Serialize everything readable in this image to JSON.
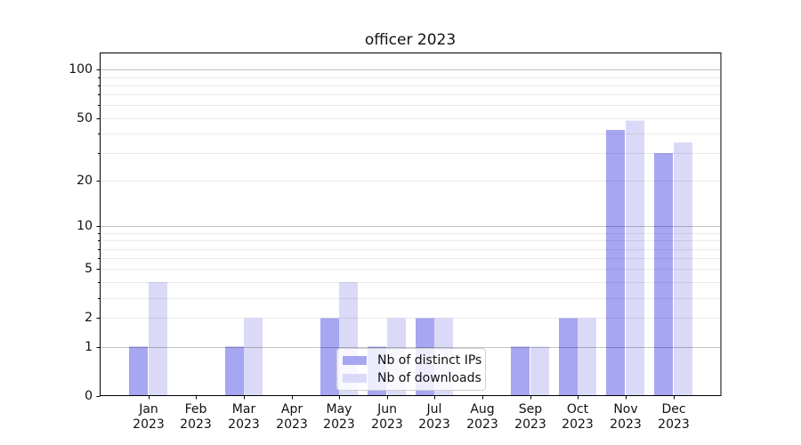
{
  "chart_data": {
    "type": "bar",
    "title": "officer 2023",
    "months": [
      "Jan",
      "Feb",
      "Mar",
      "Apr",
      "May",
      "Jun",
      "Jul",
      "Aug",
      "Sep",
      "Oct",
      "Nov",
      "Dec"
    ],
    "x_tick_year": "2023",
    "series": [
      {
        "name": "Nb of distinct IPs",
        "color": "#a6a6f2",
        "values": [
          1,
          0,
          1,
          0,
          2,
          1,
          2,
          0,
          1,
          2,
          42,
          30
        ]
      },
      {
        "name": "Nb of downloads",
        "color": "#dadaf8",
        "values": [
          4,
          0,
          2,
          0,
          4,
          2,
          2,
          0,
          1,
          2,
          48,
          35
        ]
      }
    ],
    "yscale": "log1p",
    "ylim": [
      0,
      127
    ],
    "yticks": [
      0,
      1,
      2,
      5,
      10,
      20,
      50,
      100
    ],
    "minor_gridlines": [
      2,
      3,
      4,
      5,
      6,
      7,
      8,
      9,
      20,
      30,
      40,
      50,
      60,
      70,
      80,
      90
    ],
    "major_gridlines": [
      1,
      10,
      100
    ],
    "grid": true,
    "legend_position": "lower-center"
  },
  "colors": {
    "bar_distinct_ips": "#a6a6f2",
    "bar_downloads": "#dadaf8",
    "major_grid": "rgba(0,0,0,0.24)",
    "minor_grid": "rgba(0,0,0,0.08)",
    "axis_line": "#000000",
    "legend_border": "#d0d0d0",
    "text": "#111111"
  }
}
